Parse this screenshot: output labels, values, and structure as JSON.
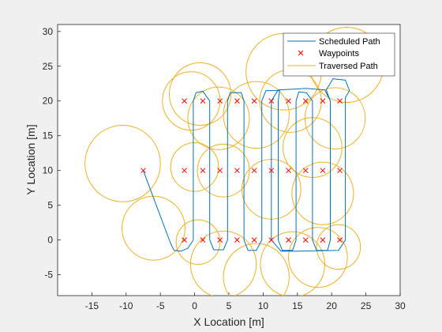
{
  "chart_data": {
    "type": "line",
    "xlabel": "X Location [m]",
    "ylabel": "Y Location [m]",
    "xlim": [
      -20,
      30
    ],
    "ylim": [
      -8,
      31
    ],
    "xticks": [
      -15,
      -10,
      -5,
      0,
      5,
      10,
      15,
      20,
      25,
      30
    ],
    "yticks": [
      -5,
      0,
      5,
      10,
      15,
      20,
      25,
      30
    ],
    "grid": false,
    "legend_position": "top-right",
    "colors": {
      "scheduled": "#0072bd",
      "waypoints": "#ff0000",
      "traversed": "#edb120"
    },
    "legend": [
      {
        "name": "Scheduled Path",
        "marker": "line",
        "color": "#0072bd"
      },
      {
        "name": "Waypoints",
        "marker": "x",
        "color": "#ff0000"
      },
      {
        "name": "Traversed Path",
        "marker": "line",
        "color": "#edb120"
      }
    ],
    "series": [
      {
        "name": "Scheduled Path",
        "style": "line",
        "color": "#0072bd",
        "points": [
          [
            -7.5,
            10
          ],
          [
            -3.5,
            -0.5
          ],
          [
            -3,
            -1.5
          ],
          [
            -2,
            -1.6
          ],
          [
            -1,
            -1.2
          ],
          [
            -0.2,
            0
          ],
          [
            -0.2,
            20
          ],
          [
            0.2,
            21.2
          ],
          [
            1.2,
            21.4
          ],
          [
            2.2,
            20
          ],
          [
            2.2,
            0
          ],
          [
            2.8,
            -1.4
          ],
          [
            4.2,
            -1.4
          ],
          [
            4.8,
            0
          ],
          [
            4.8,
            20
          ],
          [
            5.2,
            21.2
          ],
          [
            6.8,
            21.2
          ],
          [
            7.2,
            20
          ],
          [
            7.2,
            0
          ],
          [
            7.8,
            -1.5
          ],
          [
            9,
            -1.5
          ],
          [
            9.8,
            0
          ],
          [
            9.8,
            20
          ],
          [
            10.4,
            21.5
          ],
          [
            12.4,
            21.5
          ],
          [
            12.2,
            20
          ],
          [
            12.2,
            0
          ],
          [
            12.8,
            -1.5
          ],
          [
            14.3,
            -1.5
          ],
          [
            14.8,
            0
          ],
          [
            14.8,
            20
          ],
          [
            15.2,
            21.3
          ],
          [
            16.3,
            21.2
          ],
          [
            17.2,
            20
          ],
          [
            17.2,
            0
          ],
          [
            17.8,
            -1.5
          ],
          [
            19.4,
            -1.5
          ],
          [
            19.8,
            0
          ],
          [
            19.8,
            20
          ],
          [
            19.2,
            21.6
          ],
          [
            20.2,
            23.2
          ],
          [
            22,
            23
          ],
          [
            22.6,
            21.5
          ],
          [
            22,
            20.5
          ],
          [
            22,
            0
          ],
          [
            21,
            -1.5
          ],
          [
            15,
            -1.6
          ],
          [
            12.6,
            -1.6
          ],
          [
            11.2,
            0
          ],
          [
            11.2,
            20
          ],
          [
            12.2,
            21.6
          ],
          [
            16.3,
            21.8
          ],
          [
            19,
            21.6
          ],
          [
            19.8,
            20
          ]
        ]
      },
      {
        "name": "Waypoints",
        "style": "x",
        "color": "#ff0000",
        "points": [
          [
            -7.5,
            10
          ],
          [
            -1.5,
            0
          ],
          [
            1.2,
            0
          ],
          [
            3.7,
            0
          ],
          [
            6.2,
            0
          ],
          [
            8.7,
            0
          ],
          [
            11.2,
            0
          ],
          [
            13.7,
            0
          ],
          [
            16.2,
            0
          ],
          [
            18.7,
            0
          ],
          [
            21.2,
            0
          ],
          [
            -1.5,
            10
          ],
          [
            1.2,
            10
          ],
          [
            3.7,
            10
          ],
          [
            6.2,
            10
          ],
          [
            8.7,
            10
          ],
          [
            11.2,
            10
          ],
          [
            13.7,
            10
          ],
          [
            16.2,
            10
          ],
          [
            18.7,
            10
          ],
          [
            21.2,
            10
          ],
          [
            -1.5,
            20
          ],
          [
            1.2,
            20
          ],
          [
            3.7,
            20
          ],
          [
            6.2,
            20
          ],
          [
            8.7,
            20
          ],
          [
            11.2,
            20
          ],
          [
            13.7,
            20
          ],
          [
            16.2,
            20
          ],
          [
            18.7,
            20
          ],
          [
            21.2,
            20
          ]
        ]
      },
      {
        "name": "Traversed Path",
        "style": "circles",
        "color": "#edb120",
        "circles": [
          [
            -10.5,
            11,
            5.5
          ],
          [
            -6,
            1.7,
            4.6
          ],
          [
            0.5,
            -0.3,
            3.2
          ],
          [
            4.2,
            -3.5,
            4.8
          ],
          [
            9,
            -5.3,
            4.8
          ],
          [
            14.3,
            -3.5,
            4.7
          ],
          [
            18,
            -2.5,
            4.3
          ],
          [
            21,
            -1,
            3.2
          ],
          [
            18.7,
            6.7,
            4.5
          ],
          [
            11.2,
            7.3,
            4.3
          ],
          [
            4.2,
            10,
            3.8
          ],
          [
            0,
            10.5,
            3.5
          ],
          [
            -0.5,
            20,
            4.2
          ],
          [
            3.5,
            17.5,
            4.5
          ],
          [
            0.8,
            21,
            4.5
          ],
          [
            9,
            18,
            4.8
          ],
          [
            14,
            20,
            4.5
          ],
          [
            13,
            24.2,
            5.5
          ],
          [
            17.2,
            13.3,
            4.3
          ],
          [
            20.5,
            17.5,
            4.4
          ],
          [
            22.2,
            25.2,
            5.4
          ]
        ]
      }
    ]
  }
}
